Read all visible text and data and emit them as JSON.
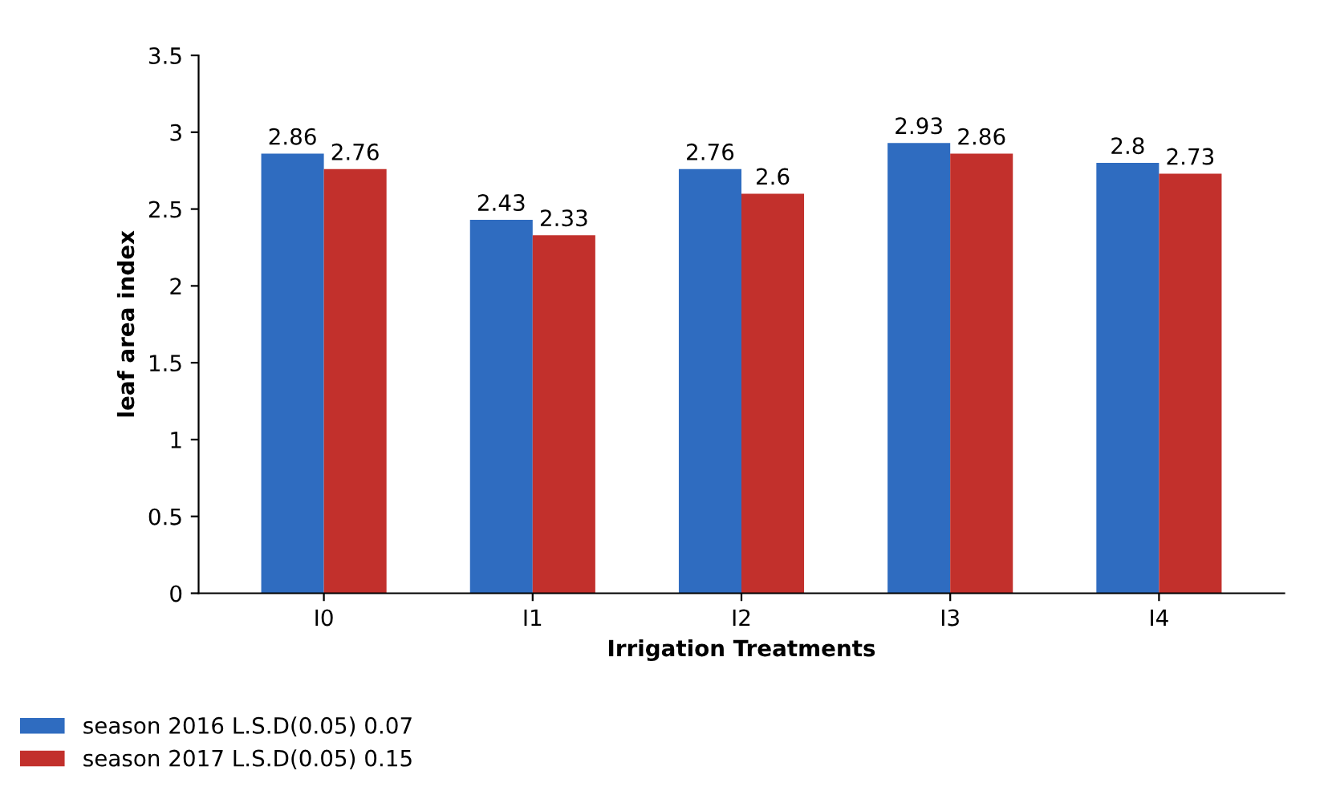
{
  "chart_data": {
    "type": "bar",
    "xlabel": "Irrigation Treatments",
    "ylabel": "leaf area index",
    "categories": [
      "I0",
      "I1",
      "I2",
      "I3",
      "I4"
    ],
    "series": [
      {
        "name": "season 2016 L.S.D(0.05) 0.07",
        "color": "#2f6cc0",
        "values": [
          2.86,
          2.43,
          2.76,
          2.93,
          2.8
        ]
      },
      {
        "name": "season 2017 L.S.D(0.05) 0.15",
        "color": "#c2302c",
        "values": [
          2.76,
          2.33,
          2.6,
          2.86,
          2.73
        ]
      }
    ],
    "ylim": [
      0,
      3.5
    ],
    "yticks": [
      0,
      0.5,
      1,
      1.5,
      2,
      2.5,
      3,
      3.5
    ],
    "data_labels": true,
    "grid": false,
    "legend": "bottom left"
  }
}
